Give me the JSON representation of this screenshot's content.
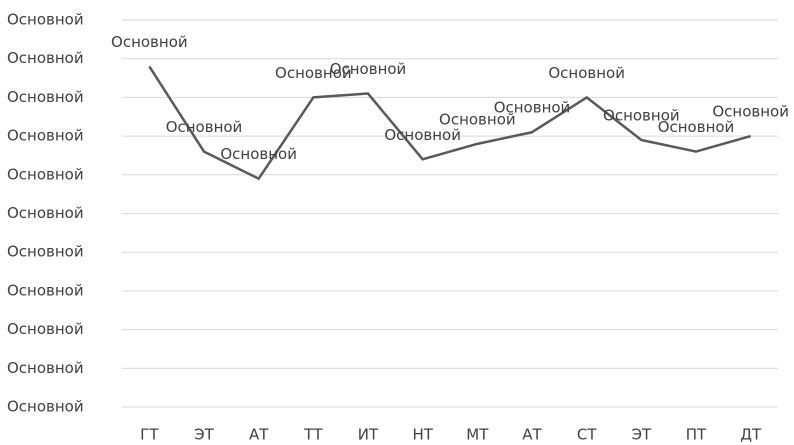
{
  "chart_data": {
    "type": "line",
    "categories": [
      "ГТ",
      "ЭТ",
      "АТ",
      "ТТ",
      "ИТ",
      "НТ",
      "МТ",
      "АТ",
      "СТ",
      "ЭТ",
      "ПТ",
      "ДТ"
    ],
    "series": [
      {
        "color": "#595959",
        "values": [
          8.8,
          6.6,
          5.9,
          8.0,
          8.1,
          6.4,
          6.8,
          7.1,
          8.0,
          6.9,
          6.6,
          7.0
        ],
        "value_labels": [
          "Основной",
          "Основной",
          "Основной",
          "Основной",
          "Основной",
          "Основной",
          "Основной",
          "Основной",
          "Основной",
          "Основной",
          "Основной",
          "Основной"
        ]
      }
    ],
    "ylim": [
      0,
      10
    ],
    "yticks": [
      {
        "value": 0,
        "label": "Основной"
      },
      {
        "value": 1,
        "label": "Основной"
      },
      {
        "value": 2,
        "label": "Основной"
      },
      {
        "value": 3,
        "label": "Основной"
      },
      {
        "value": 4,
        "label": "Основной"
      },
      {
        "value": 5,
        "label": "Основной"
      },
      {
        "value": 6,
        "label": "Основной"
      },
      {
        "value": 7,
        "label": "Основной"
      },
      {
        "value": 8,
        "label": "Основной"
      },
      {
        "value": 9,
        "label": "Основной"
      },
      {
        "value": 10,
        "label": "Основной"
      }
    ],
    "grid": true
  }
}
